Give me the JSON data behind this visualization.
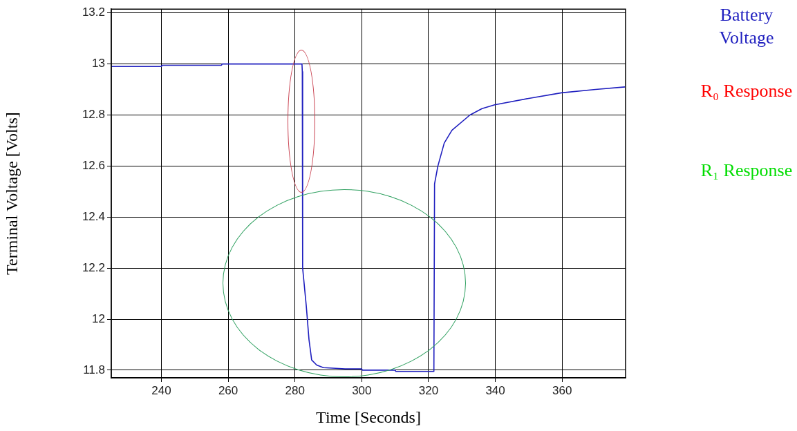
{
  "chart_data": {
    "type": "line",
    "xlabel": "Time [Seconds]",
    "ylabel": "Terminal Voltage [Volts]",
    "series": [
      {
        "name": "Battery Voltage",
        "color": "#1f1fbf",
        "x": [
          225,
          240,
          240.2,
          258,
          258.2,
          282.1,
          282.2,
          282.3,
          283.4,
          284.2,
          285,
          286.5,
          288.5,
          295,
          300,
          300.2,
          310,
          310.2,
          321.6,
          321.8,
          322.8,
          324.7,
          327,
          332.4,
          336,
          339.8,
          350,
          359.8,
          370,
          378.8
        ],
        "values": [
          12.99,
          12.99,
          12.995,
          12.995,
          13,
          13,
          12.97,
          12.2,
          12.05,
          11.92,
          11.84,
          11.82,
          11.81,
          11.805,
          11.805,
          11.8,
          11.8,
          11.795,
          11.795,
          12.53,
          12.6,
          12.69,
          12.74,
          12.8,
          12.825,
          12.84,
          12.865,
          12.887,
          12.9,
          12.91
        ]
      }
    ],
    "xlim": [
      225,
      379
    ],
    "xticks": [
      240,
      260,
      280,
      300,
      320,
      340,
      360
    ],
    "ylim": [
      11.77,
      13.215
    ],
    "yticks": [
      11.8,
      12,
      12.2,
      12.4,
      12.6,
      12.8,
      13,
      13.2
    ],
    "grid": true,
    "legend": "right",
    "marker": "none",
    "line_style": "solid",
    "annotations": [
      "R₀ Response",
      "R₁ Response"
    ]
  }
}
